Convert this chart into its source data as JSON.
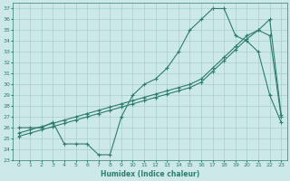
{
  "xlabel": "Humidex (Indice chaleur)",
  "background_color": "#cce8e8",
  "line_color": "#2e7d6e",
  "grid_color": "#a8cece",
  "xlim": [
    -0.5,
    23.5
  ],
  "ylim": [
    23,
    37.5
  ],
  "xticks": [
    0,
    1,
    2,
    3,
    4,
    5,
    6,
    7,
    8,
    9,
    10,
    11,
    12,
    13,
    14,
    15,
    16,
    17,
    18,
    19,
    20,
    21,
    22,
    23
  ],
  "yticks": [
    23,
    24,
    25,
    26,
    27,
    28,
    29,
    30,
    31,
    32,
    33,
    34,
    35,
    36,
    37
  ],
  "line1_x": [
    0,
    1,
    2,
    3,
    4,
    5,
    6,
    7,
    8,
    9,
    10,
    11,
    12,
    13,
    14,
    15,
    16,
    17,
    18,
    19,
    20,
    21,
    22,
    23
  ],
  "line1_y": [
    26,
    26,
    26,
    26.5,
    24.5,
    24.5,
    24.5,
    23.5,
    23.5,
    27,
    29,
    30,
    30.5,
    31.5,
    33,
    35,
    36,
    37,
    37,
    34.5,
    34,
    33,
    29,
    26.5
  ],
  "line2_x": [
    0,
    1,
    2,
    3,
    4,
    5,
    6,
    7,
    8,
    9,
    10,
    11,
    12,
    13,
    14,
    15,
    16,
    17,
    18,
    19,
    20,
    21,
    22,
    23
  ],
  "line2_y": [
    25.5,
    25.8,
    26.1,
    26.4,
    26.7,
    27.0,
    27.3,
    27.6,
    27.9,
    28.2,
    28.5,
    28.8,
    29.1,
    29.4,
    29.7,
    30.0,
    30.5,
    31.5,
    32.5,
    33.5,
    34.5,
    35.0,
    34.5,
    27.0
  ],
  "line3_x": [
    0,
    1,
    2,
    3,
    4,
    5,
    6,
    7,
    8,
    9,
    10,
    11,
    12,
    13,
    14,
    15,
    16,
    17,
    18,
    19,
    20,
    21,
    22,
    23
  ],
  "line3_y": [
    25.2,
    25.5,
    25.8,
    26.1,
    26.4,
    26.7,
    27.0,
    27.3,
    27.6,
    27.9,
    28.2,
    28.5,
    28.8,
    29.1,
    29.4,
    29.7,
    30.2,
    31.2,
    32.2,
    33.2,
    34.2,
    35.0,
    36.0,
    27.2
  ]
}
